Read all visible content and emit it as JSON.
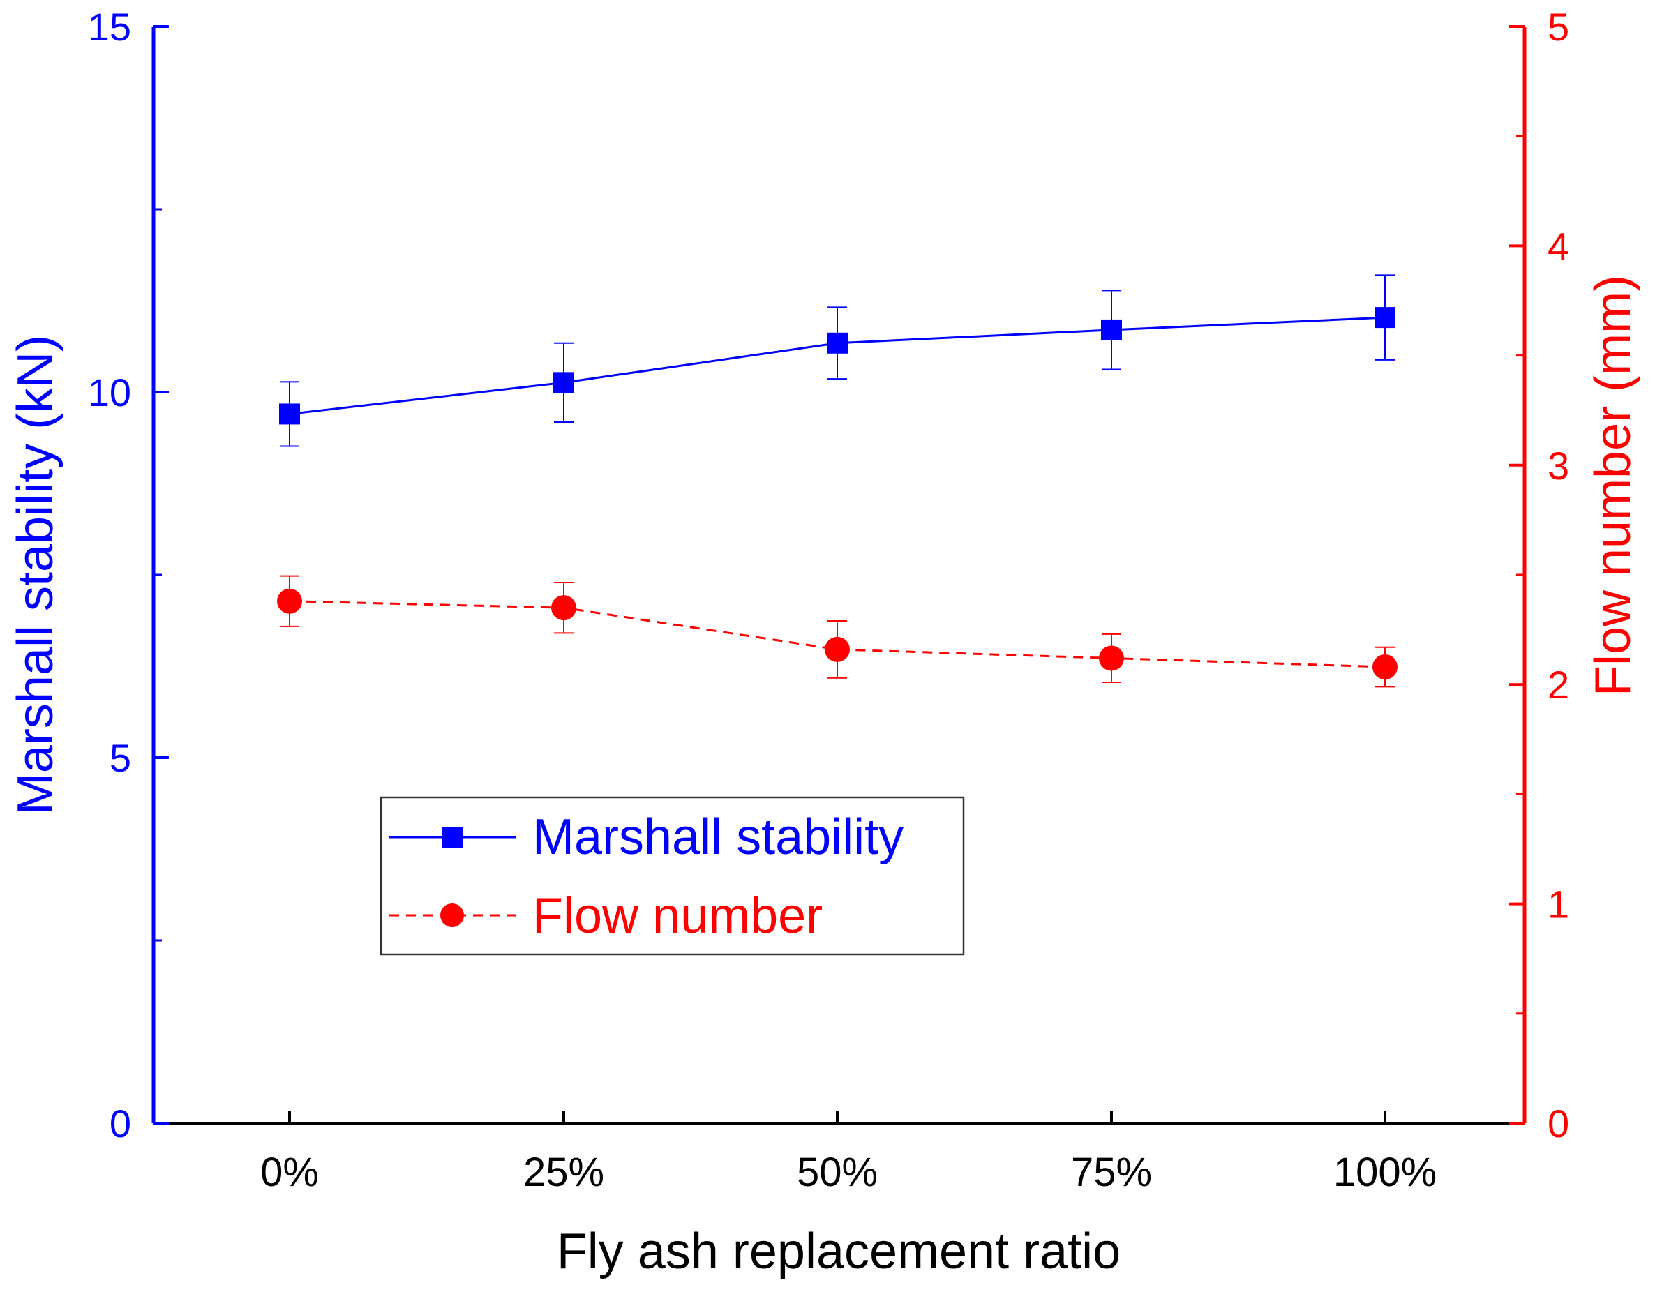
{
  "chart_data": {
    "type": "line",
    "title": "",
    "xlabel": "Fly ash replacement ratio",
    "categories": [
      "0%",
      "25%",
      "50%",
      "75%",
      "100%"
    ],
    "y_left": {
      "label": "Marshall stability (kN)",
      "ylim": [
        0,
        15
      ],
      "ticks": [
        "0",
        "5",
        "10",
        "15"
      ],
      "color": "#0000ff"
    },
    "y_right": {
      "label": "Flow number (mm)",
      "ylim": [
        0,
        5
      ],
      "ticks": [
        "0",
        "1",
        "2",
        "3",
        "4",
        "5"
      ],
      "color": "#ff0000"
    },
    "series": [
      {
        "name": "Marshall stability",
        "axis": "left",
        "color": "#0000ff",
        "marker": "square",
        "line": "solid",
        "values": [
          9.7,
          10.13,
          10.67,
          10.85,
          11.02
        ],
        "errors": [
          0.44,
          0.54,
          0.49,
          0.54,
          0.58
        ]
      },
      {
        "name": "Flow number",
        "axis": "right",
        "color": "#ff0000",
        "marker": "circle",
        "line": "dashed",
        "values": [
          2.38,
          2.35,
          2.16,
          2.12,
          2.08
        ],
        "errors": [
          0.115,
          0.115,
          0.13,
          0.11,
          0.09
        ]
      }
    ],
    "legend": {
      "placement": "lower-left",
      "entries": [
        "Marshall stability",
        "Flow number"
      ]
    },
    "grid": false
  }
}
